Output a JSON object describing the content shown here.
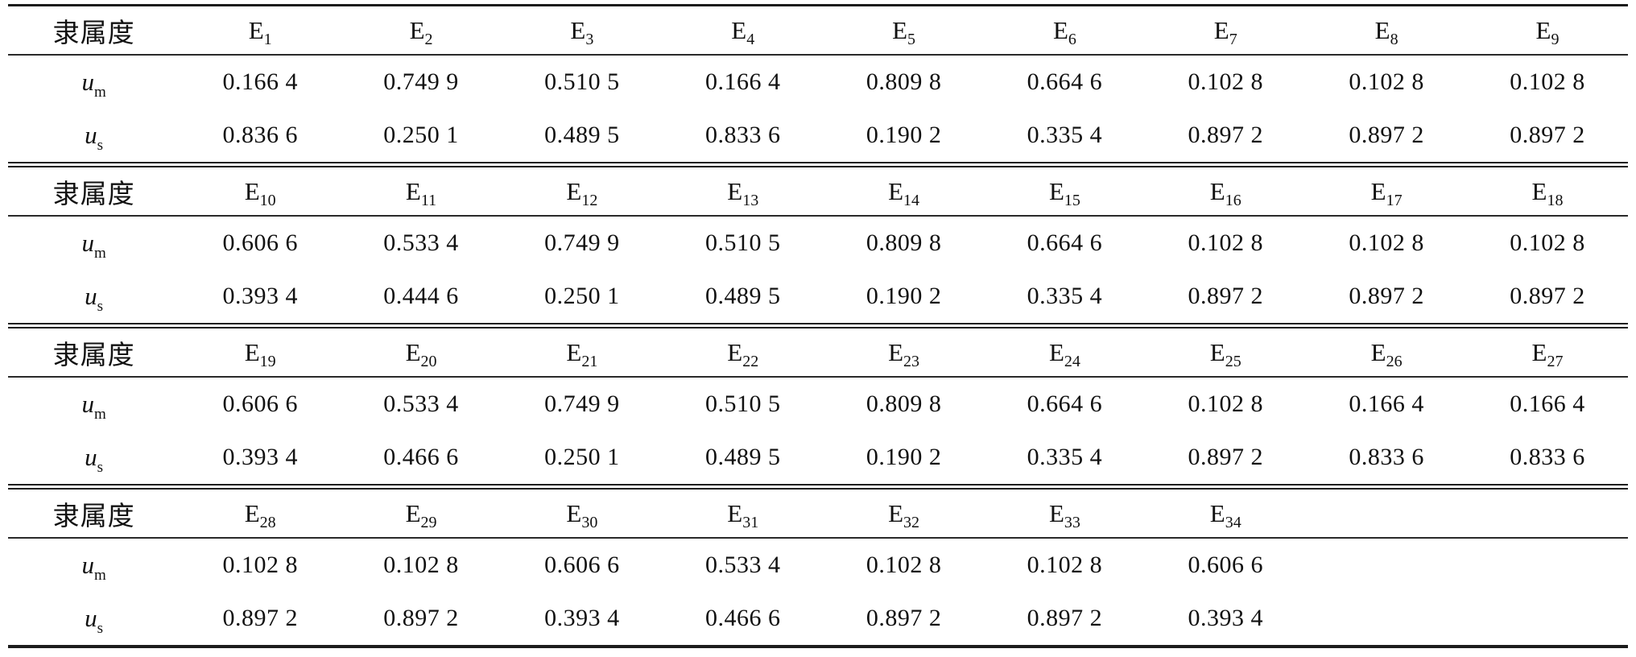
{
  "page": {
    "background": "#ffffff",
    "text_color": "#111111",
    "rule_color": "#1c1c1c"
  },
  "table": {
    "header_label": "隶属度",
    "row_labels": [
      {
        "base": "u",
        "sub": "m"
      },
      {
        "base": "u",
        "sub": "s"
      }
    ],
    "sections": [
      {
        "columns": [
          {
            "base": "E",
            "sub": "1"
          },
          {
            "base": "E",
            "sub": "2"
          },
          {
            "base": "E",
            "sub": "3"
          },
          {
            "base": "E",
            "sub": "4"
          },
          {
            "base": "E",
            "sub": "5"
          },
          {
            "base": "E",
            "sub": "6"
          },
          {
            "base": "E",
            "sub": "7"
          },
          {
            "base": "E",
            "sub": "8"
          },
          {
            "base": "E",
            "sub": "9"
          }
        ],
        "rows": [
          [
            "0.166 4",
            "0.749 9",
            "0.510 5",
            "0.166 4",
            "0.809 8",
            "0.664 6",
            "0.102 8",
            "0.102 8",
            "0.102 8"
          ],
          [
            "0.836 6",
            "0.250 1",
            "0.489 5",
            "0.833 6",
            "0.190 2",
            "0.335 4",
            "0.897 2",
            "0.897 2",
            "0.897 2"
          ]
        ]
      },
      {
        "columns": [
          {
            "base": "E",
            "sub": "10"
          },
          {
            "base": "E",
            "sub": "11"
          },
          {
            "base": "E",
            "sub": "12"
          },
          {
            "base": "E",
            "sub": "13"
          },
          {
            "base": "E",
            "sub": "14"
          },
          {
            "base": "E",
            "sub": "15"
          },
          {
            "base": "E",
            "sub": "16"
          },
          {
            "base": "E",
            "sub": "17"
          },
          {
            "base": "E",
            "sub": "18"
          }
        ],
        "rows": [
          [
            "0.606 6",
            "0.533 4",
            "0.749 9",
            "0.510 5",
            "0.809 8",
            "0.664 6",
            "0.102 8",
            "0.102 8",
            "0.102 8"
          ],
          [
            "0.393 4",
            "0.444 6",
            "0.250 1",
            "0.489 5",
            "0.190 2",
            "0.335 4",
            "0.897 2",
            "0.897 2",
            "0.897 2"
          ]
        ]
      },
      {
        "columns": [
          {
            "base": "E",
            "sub": "19"
          },
          {
            "base": "E",
            "sub": "20"
          },
          {
            "base": "E",
            "sub": "21"
          },
          {
            "base": "E",
            "sub": "22"
          },
          {
            "base": "E",
            "sub": "23"
          },
          {
            "base": "E",
            "sub": "24"
          },
          {
            "base": "E",
            "sub": "25"
          },
          {
            "base": "E",
            "sub": "26"
          },
          {
            "base": "E",
            "sub": "27"
          }
        ],
        "rows": [
          [
            "0.606 6",
            "0.533 4",
            "0.749 9",
            "0.510 5",
            "0.809 8",
            "0.664 6",
            "0.102 8",
            "0.166 4",
            "0.166 4"
          ],
          [
            "0.393 4",
            "0.466 6",
            "0.250 1",
            "0.489 5",
            "0.190 2",
            "0.335 4",
            "0.897 2",
            "0.833 6",
            "0.833 6"
          ]
        ]
      },
      {
        "columns": [
          {
            "base": "E",
            "sub": "28"
          },
          {
            "base": "E",
            "sub": "29"
          },
          {
            "base": "E",
            "sub": "30"
          },
          {
            "base": "E",
            "sub": "31"
          },
          {
            "base": "E",
            "sub": "32"
          },
          {
            "base": "E",
            "sub": "33"
          },
          {
            "base": "E",
            "sub": "34"
          }
        ],
        "rows": [
          [
            "0.102 8",
            "0.102 8",
            "0.606 6",
            "0.533 4",
            "0.102 8",
            "0.102 8",
            "0.606 6"
          ],
          [
            "0.897 2",
            "0.897 2",
            "0.393 4",
            "0.466 6",
            "0.897 2",
            "0.897 2",
            "0.393 4"
          ]
        ]
      }
    ]
  }
}
